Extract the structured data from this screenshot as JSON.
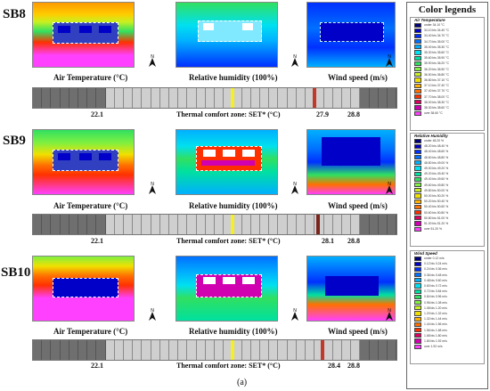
{
  "rows": [
    {
      "label": "SB8",
      "set_value": "27.9",
      "marker_color": "#c0392b"
    },
    {
      "label": "SB9",
      "set_value": "28.1",
      "marker_color": "#7b241c"
    },
    {
      "label": "SB10",
      "set_value": "28.4",
      "marker_color": "#c0392b"
    }
  ],
  "captions": {
    "air_temperature": "Air Temperature (°C)",
    "relative_humidity": "Relative humidity (100%)",
    "wind_speed": "Wind speed (m/s)",
    "comfort_zone": "Thermal comfort zone: SET* (°C)"
  },
  "comfort_bounds": {
    "low": "22.1",
    "high": "28.8"
  },
  "legend": {
    "title": "Color legends",
    "air": {
      "title": "Air Temperature",
      "items": [
        {
          "t": "under 34.10 °C",
          "c": "#00007a"
        },
        {
          "t": "34.10 bis 34.40 °C",
          "c": "#0000c8"
        },
        {
          "t": "34.40 bis 34.70 °C",
          "c": "#0030ff"
        },
        {
          "t": "34.70 bis 35.00 °C",
          "c": "#0070ff"
        },
        {
          "t": "35.00 bis 35.30 °C",
          "c": "#00b0ff"
        },
        {
          "t": "35.30 bis 35.60 °C",
          "c": "#00e0f0"
        },
        {
          "t": "35.60 bis 35.90 °C",
          "c": "#00e0a0"
        },
        {
          "t": "35.90 bis 36.20 °C",
          "c": "#30e060"
        },
        {
          "t": "36.20 bis 36.50 °C",
          "c": "#80f040"
        },
        {
          "t": "36.50 bis 36.80 °C",
          "c": "#c8f020"
        },
        {
          "t": "36.80 bis 37.10 °C",
          "c": "#f0e000"
        },
        {
          "t": "37.10 bis 37.40 °C",
          "c": "#ffb000"
        },
        {
          "t": "37.40 bis 37.70 °C",
          "c": "#ff7000"
        },
        {
          "t": "37.70 bis 38.00 °C",
          "c": "#ff3000"
        },
        {
          "t": "38.00 bis 38.30 °C",
          "c": "#e00060"
        },
        {
          "t": "38.30 bis 38.60 °C",
          "c": "#d000b0"
        },
        {
          "t": "over 38.60 °C",
          "c": "#ff40ff"
        }
      ]
    },
    "rh": {
      "title": "Relative Humidity",
      "items": [
        {
          "t": "under 48.20 %",
          "c": "#00007a"
        },
        {
          "t": "48.20 bis 48.40 %",
          "c": "#0000c8"
        },
        {
          "t": "48.40 bis 48.60 %",
          "c": "#0030ff"
        },
        {
          "t": "48.60 bis 48.80 %",
          "c": "#0070ff"
        },
        {
          "t": "48.80 bis 49.00 %",
          "c": "#00b0ff"
        },
        {
          "t": "49.00 bis 49.20 %",
          "c": "#00e0f0"
        },
        {
          "t": "49.20 bis 49.40 %",
          "c": "#00e0a0"
        },
        {
          "t": "49.40 bis 49.60 %",
          "c": "#30e060"
        },
        {
          "t": "49.60 bis 49.80 %",
          "c": "#80f040"
        },
        {
          "t": "49.80 bis 50.00 %",
          "c": "#c8f020"
        },
        {
          "t": "50.00 bis 50.20 %",
          "c": "#f0e000"
        },
        {
          "t": "50.20 bis 50.40 %",
          "c": "#ffb000"
        },
        {
          "t": "50.40 bis 50.60 %",
          "c": "#ff7000"
        },
        {
          "t": "50.60 bis 50.80 %",
          "c": "#ff3000"
        },
        {
          "t": "50.80 bis 51.00 %",
          "c": "#e00060"
        },
        {
          "t": "51.00 bis 51.20 %",
          "c": "#d000b0"
        },
        {
          "t": "over 51.20 %",
          "c": "#ff40ff"
        }
      ]
    },
    "wind": {
      "title": "Wind Speed",
      "items": [
        {
          "t": "under 0.12 m/s",
          "c": "#00007a"
        },
        {
          "t": "0.12 bis 0.24 m/s",
          "c": "#0000c8"
        },
        {
          "t": "0.24 bis 0.36 m/s",
          "c": "#0030ff"
        },
        {
          "t": "0.36 bis 0.48 m/s",
          "c": "#0070ff"
        },
        {
          "t": "0.48 bis 0.60 m/s",
          "c": "#00b0ff"
        },
        {
          "t": "0.60 bis 0.72 m/s",
          "c": "#00e0f0"
        },
        {
          "t": "0.72 bis 0.84 m/s",
          "c": "#00e0a0"
        },
        {
          "t": "0.84 bis 0.96 m/s",
          "c": "#30e060"
        },
        {
          "t": "0.96 bis 1.08 m/s",
          "c": "#80f040"
        },
        {
          "t": "1.08 bis 1.20 m/s",
          "c": "#c8f020"
        },
        {
          "t": "1.20 bis 1.32 m/s",
          "c": "#f0e000"
        },
        {
          "t": "1.32 bis 1.44 m/s",
          "c": "#ffb000"
        },
        {
          "t": "1.44 bis 1.56 m/s",
          "c": "#ff7000"
        },
        {
          "t": "1.56 bis 1.68 m/s",
          "c": "#ff3000"
        },
        {
          "t": "1.68 bis 1.80 m/s",
          "c": "#e00060"
        },
        {
          "t": "1.80 bis 1.92 m/s",
          "c": "#d000b0"
        },
        {
          "t": "over 1.92 m/s",
          "c": "#ff40ff"
        }
      ]
    }
  },
  "figure_label": "(a)"
}
